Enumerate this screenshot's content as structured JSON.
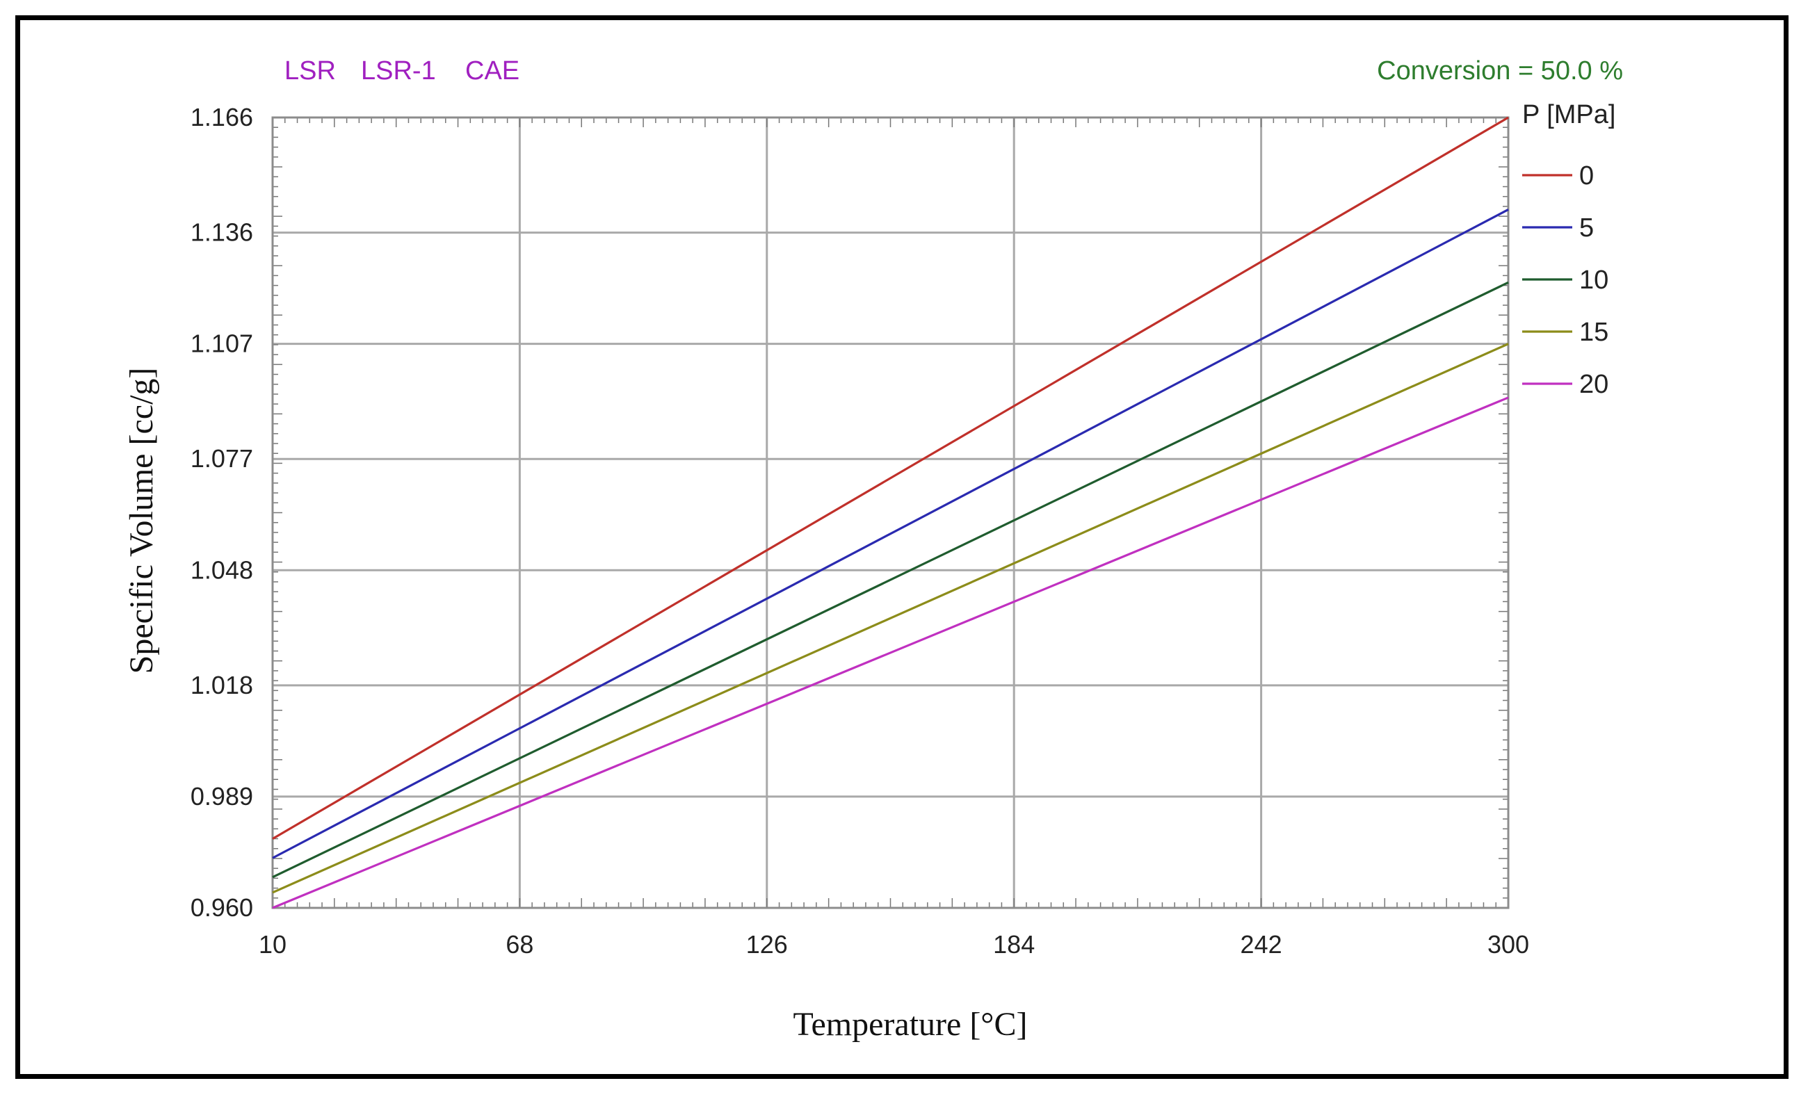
{
  "header": {
    "material_tags": [
      "LSR",
      "LSR-1",
      "CAE"
    ],
    "conversion_label": "Conversion = 50.0 %"
  },
  "colors": {
    "tag": "#a020c0",
    "conversion": "#2e7d2e",
    "grid": "#a9a9a9",
    "plot_border": "#8c8c8c"
  },
  "chart_data": {
    "type": "line",
    "title": "",
    "xlabel": "Temperature [°C]",
    "ylabel": "Specific Volume [cc/g]",
    "xlim": [
      10,
      300
    ],
    "ylim": [
      0.96,
      1.166
    ],
    "x_ticks": [
      10,
      68,
      126,
      184,
      242,
      300
    ],
    "x_tick_labels": [
      "10",
      "68",
      "126",
      "184",
      "242",
      "300"
    ],
    "y_ticks": [
      0.96,
      0.989,
      1.018,
      1.048,
      1.077,
      1.107,
      1.136,
      1.166
    ],
    "y_tick_labels": [
      "0.960",
      "0.989",
      "1.018",
      "1.048",
      "1.077",
      "1.107",
      "1.136",
      "1.166"
    ],
    "grid": true,
    "legend_title": "P [MPa]",
    "legend_position": "right",
    "x": [
      10,
      300
    ],
    "series": [
      {
        "name": "0",
        "color": "#c0302a",
        "values": [
          0.978,
          1.166
        ]
      },
      {
        "name": "5",
        "color": "#2a2ab0",
        "values": [
          0.973,
          1.142
        ]
      },
      {
        "name": "10",
        "color": "#1f5c2e",
        "values": [
          0.968,
          1.123
        ]
      },
      {
        "name": "15",
        "color": "#8c8c1a",
        "values": [
          0.964,
          1.107
        ]
      },
      {
        "name": "20",
        "color": "#c030c0",
        "values": [
          0.96,
          1.093
        ]
      }
    ]
  }
}
